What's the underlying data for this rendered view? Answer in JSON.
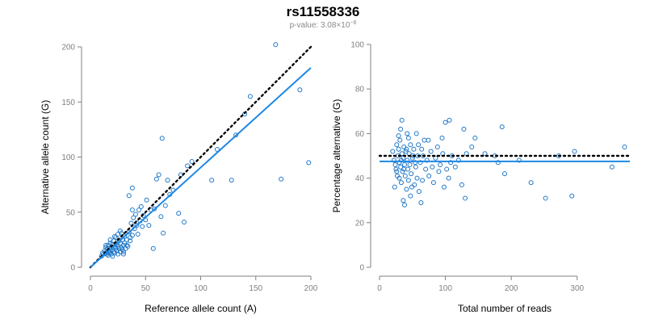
{
  "header": {
    "title": "rs11558336",
    "pvalue_prefix": "p-value: 3.08×10",
    "pvalue_exp": "−8"
  },
  "colors": {
    "points": "#1f77c8",
    "fit_line": "#1e88e5",
    "reference_line": "#000000",
    "axis": "#808080"
  },
  "chart_data": [
    {
      "type": "scatter",
      "xlabel": "Reference allele count (A)",
      "ylabel": "Alternative allele count (G)",
      "xlim": [
        0,
        200
      ],
      "ylim": [
        0,
        200
      ],
      "xticks": [
        0,
        50,
        100,
        150,
        200
      ],
      "yticks": [
        0,
        50,
        100,
        150,
        200
      ],
      "reference_line": {
        "style": "dotted",
        "x": [
          0,
          200
        ],
        "y": [
          0,
          200
        ]
      },
      "fit_line": {
        "style": "solid",
        "x": [
          0,
          200
        ],
        "y": [
          0,
          181
        ]
      },
      "points": [
        [
          12,
          12
        ],
        [
          13,
          15
        ],
        [
          14,
          13
        ],
        [
          14,
          18
        ],
        [
          15,
          12
        ],
        [
          15,
          16
        ],
        [
          16,
          14
        ],
        [
          16,
          20
        ],
        [
          17,
          13
        ],
        [
          17,
          17
        ],
        [
          18,
          15
        ],
        [
          18,
          22
        ],
        [
          19,
          12
        ],
        [
          19,
          18
        ],
        [
          20,
          16
        ],
        [
          20,
          21
        ],
        [
          21,
          14
        ],
        [
          21,
          24
        ],
        [
          22,
          19
        ],
        [
          22,
          13
        ],
        [
          23,
          17
        ],
        [
          23,
          27
        ],
        [
          24,
          15
        ],
        [
          24,
          21
        ],
        [
          25,
          19
        ],
        [
          25,
          12
        ],
        [
          26,
          24
        ],
        [
          26,
          17
        ],
        [
          27,
          22
        ],
        [
          27,
          14
        ],
        [
          28,
          18
        ],
        [
          28,
          31
        ],
        [
          29,
          25
        ],
        [
          29,
          16
        ],
        [
          30,
          20
        ],
        [
          30,
          12
        ],
        [
          31,
          28
        ],
        [
          31,
          22
        ],
        [
          32,
          17
        ],
        [
          33,
          25
        ],
        [
          34,
          19
        ],
        [
          35,
          32
        ],
        [
          36,
          24
        ],
        [
          37,
          40
        ],
        [
          38,
          29
        ],
        [
          38,
          52
        ],
        [
          39,
          45
        ],
        [
          40,
          35
        ],
        [
          41,
          48
        ],
        [
          42,
          38
        ],
        [
          43,
          30
        ],
        [
          44,
          52
        ],
        [
          45,
          42
        ],
        [
          46,
          55
        ],
        [
          47,
          37
        ],
        [
          48,
          47
        ],
        [
          50,
          43
        ],
        [
          51,
          61
        ],
        [
          53,
          38
        ],
        [
          55,
          52
        ],
        [
          57,
          17
        ],
        [
          58,
          53
        ],
        [
          60,
          80
        ],
        [
          62,
          84
        ],
        [
          64,
          46
        ],
        [
          65,
          117
        ],
        [
          66,
          31
        ],
        [
          68,
          56
        ],
        [
          70,
          79
        ],
        [
          72,
          66
        ],
        [
          75,
          70
        ],
        [
          80,
          49
        ],
        [
          82,
          84
        ],
        [
          85,
          41
        ],
        [
          88,
          92
        ],
        [
          92,
          96
        ],
        [
          110,
          79
        ],
        [
          115,
          107
        ],
        [
          128,
          79
        ],
        [
          132,
          120
        ],
        [
          140,
          139
        ],
        [
          145,
          155
        ],
        [
          168,
          202
        ],
        [
          173,
          80
        ],
        [
          190,
          161
        ],
        [
          198,
          95
        ],
        [
          35,
          65
        ],
        [
          38,
          72
        ],
        [
          20,
          10
        ],
        [
          25,
          30
        ],
        [
          10,
          10
        ],
        [
          11,
          13
        ],
        [
          14,
          20
        ],
        [
          16,
          11
        ],
        [
          18,
          25
        ],
        [
          22,
          28
        ],
        [
          27,
          33
        ],
        [
          30,
          14
        ],
        [
          33,
          20
        ],
        [
          36,
          27
        ]
      ]
    },
    {
      "type": "scatter",
      "xlabel": "Total number of reads",
      "ylabel": "Percentage alternative (G)",
      "xlim": [
        0,
        380
      ],
      "ylim": [
        0,
        100
      ],
      "xticks": [
        0,
        100,
        200,
        300
      ],
      "yticks": [
        0,
        20,
        40,
        60,
        80,
        100
      ],
      "reference_line": {
        "style": "dotted",
        "y": 50
      },
      "fit_line": {
        "style": "solid",
        "y": 47.5
      },
      "points": [
        [
          20,
          52
        ],
        [
          22,
          48
        ],
        [
          24,
          46
        ],
        [
          25,
          44
        ],
        [
          26,
          55
        ],
        [
          27,
          41
        ],
        [
          28,
          50
        ],
        [
          29,
          53
        ],
        [
          30,
          47
        ],
        [
          30,
          40
        ],
        [
          31,
          57
        ],
        [
          32,
          45
        ],
        [
          32,
          62
        ],
        [
          33,
          38
        ],
        [
          34,
          51
        ],
        [
          34,
          66
        ],
        [
          35,
          43
        ],
        [
          36,
          49
        ],
        [
          36,
          30
        ],
        [
          37,
          54
        ],
        [
          38,
          46
        ],
        [
          38,
          28
        ],
        [
          39,
          41
        ],
        [
          40,
          52
        ],
        [
          41,
          35
        ],
        [
          42,
          48
        ],
        [
          42,
          60
        ],
        [
          43,
          44
        ],
        [
          44,
          39
        ],
        [
          45,
          51
        ],
        [
          46,
          46
        ],
        [
          47,
          55
        ],
        [
          48,
          42
        ],
        [
          49,
          36
        ],
        [
          50,
          49
        ],
        [
          52,
          53
        ],
        [
          53,
          37
        ],
        [
          55,
          45
        ],
        [
          56,
          60
        ],
        [
          57,
          40
        ],
        [
          58,
          50
        ],
        [
          60,
          34
        ],
        [
          62,
          47
        ],
        [
          63,
          29
        ],
        [
          64,
          53
        ],
        [
          65,
          39
        ],
        [
          68,
          57
        ],
        [
          70,
          44
        ],
        [
          72,
          48
        ],
        [
          75,
          41
        ],
        [
          78,
          52
        ],
        [
          80,
          45
        ],
        [
          82,
          38
        ],
        [
          85,
          49
        ],
        [
          88,
          54
        ],
        [
          90,
          43
        ],
        [
          92,
          46
        ],
        [
          95,
          58
        ],
        [
          96,
          51
        ],
        [
          98,
          36
        ],
        [
          100,
          65
        ],
        [
          102,
          44
        ],
        [
          105,
          40
        ],
        [
          106,
          66
        ],
        [
          108,
          47
        ],
        [
          110,
          50
        ],
        [
          115,
          45
        ],
        [
          120,
          48
        ],
        [
          125,
          37
        ],
        [
          128,
          62
        ],
        [
          130,
          31
        ],
        [
          132,
          51
        ],
        [
          140,
          54
        ],
        [
          145,
          58
        ],
        [
          160,
          51
        ],
        [
          175,
          50
        ],
        [
          180,
          47
        ],
        [
          186,
          63
        ],
        [
          190,
          42
        ],
        [
          212,
          48
        ],
        [
          230,
          38
        ],
        [
          252,
          31
        ],
        [
          272,
          50
        ],
        [
          292,
          32
        ],
        [
          296,
          52
        ],
        [
          353,
          45
        ],
        [
          372,
          54
        ],
        [
          23,
          36
        ],
        [
          26,
          43
        ],
        [
          29,
          59
        ],
        [
          33,
          48
        ],
        [
          37,
          44
        ],
        [
          41,
          53
        ],
        [
          44,
          58
        ],
        [
          47,
          32
        ],
        [
          51,
          50
        ],
        [
          54,
          47
        ],
        [
          59,
          55
        ],
        [
          66,
          50
        ],
        [
          74,
          57
        ]
      ]
    }
  ]
}
